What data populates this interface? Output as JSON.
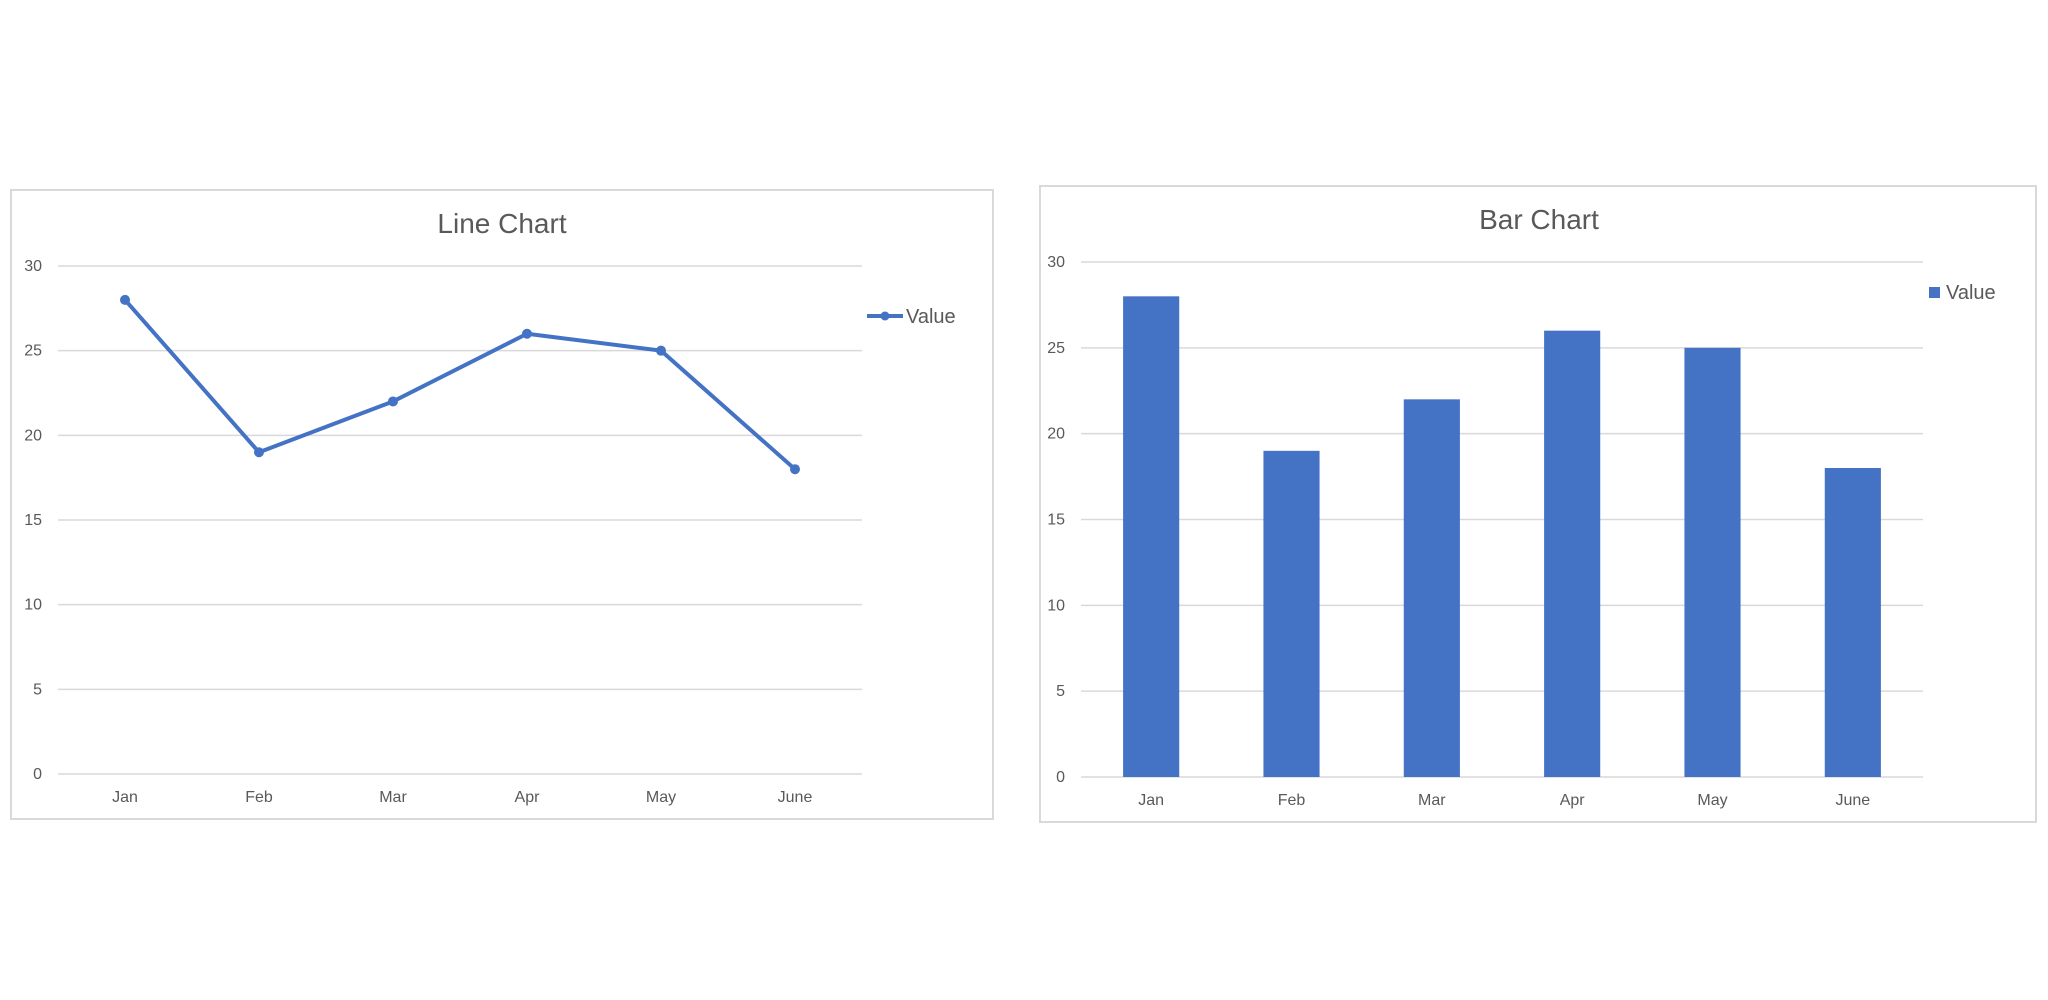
{
  "colors": {
    "series": "#4472C4",
    "grid": "#d9d9d9",
    "text": "#595959"
  },
  "chart_data": [
    {
      "type": "line",
      "title": "Line Chart",
      "categories": [
        "Jan",
        "Feb",
        "Mar",
        "Apr",
        "May",
        "June"
      ],
      "series": [
        {
          "name": "Value",
          "values": [
            28,
            19,
            22,
            26,
            25,
            18
          ]
        }
      ],
      "xlabel": "",
      "ylabel": "",
      "ylim": [
        0,
        30
      ],
      "yticks": [
        "0",
        "5",
        "10",
        "15",
        "20",
        "25",
        "30"
      ],
      "grid": true,
      "legend": "right",
      "markers": true
    },
    {
      "type": "bar",
      "title": "Bar Chart",
      "categories": [
        "Jan",
        "Feb",
        "Mar",
        "Apr",
        "May",
        "June"
      ],
      "series": [
        {
          "name": "Value",
          "values": [
            28,
            19,
            22,
            26,
            25,
            18
          ]
        }
      ],
      "xlabel": "",
      "ylabel": "",
      "ylim": [
        0,
        30
      ],
      "yticks": [
        "0",
        "5",
        "10",
        "15",
        "20",
        "25",
        "30"
      ],
      "grid": true,
      "legend": "right"
    }
  ]
}
